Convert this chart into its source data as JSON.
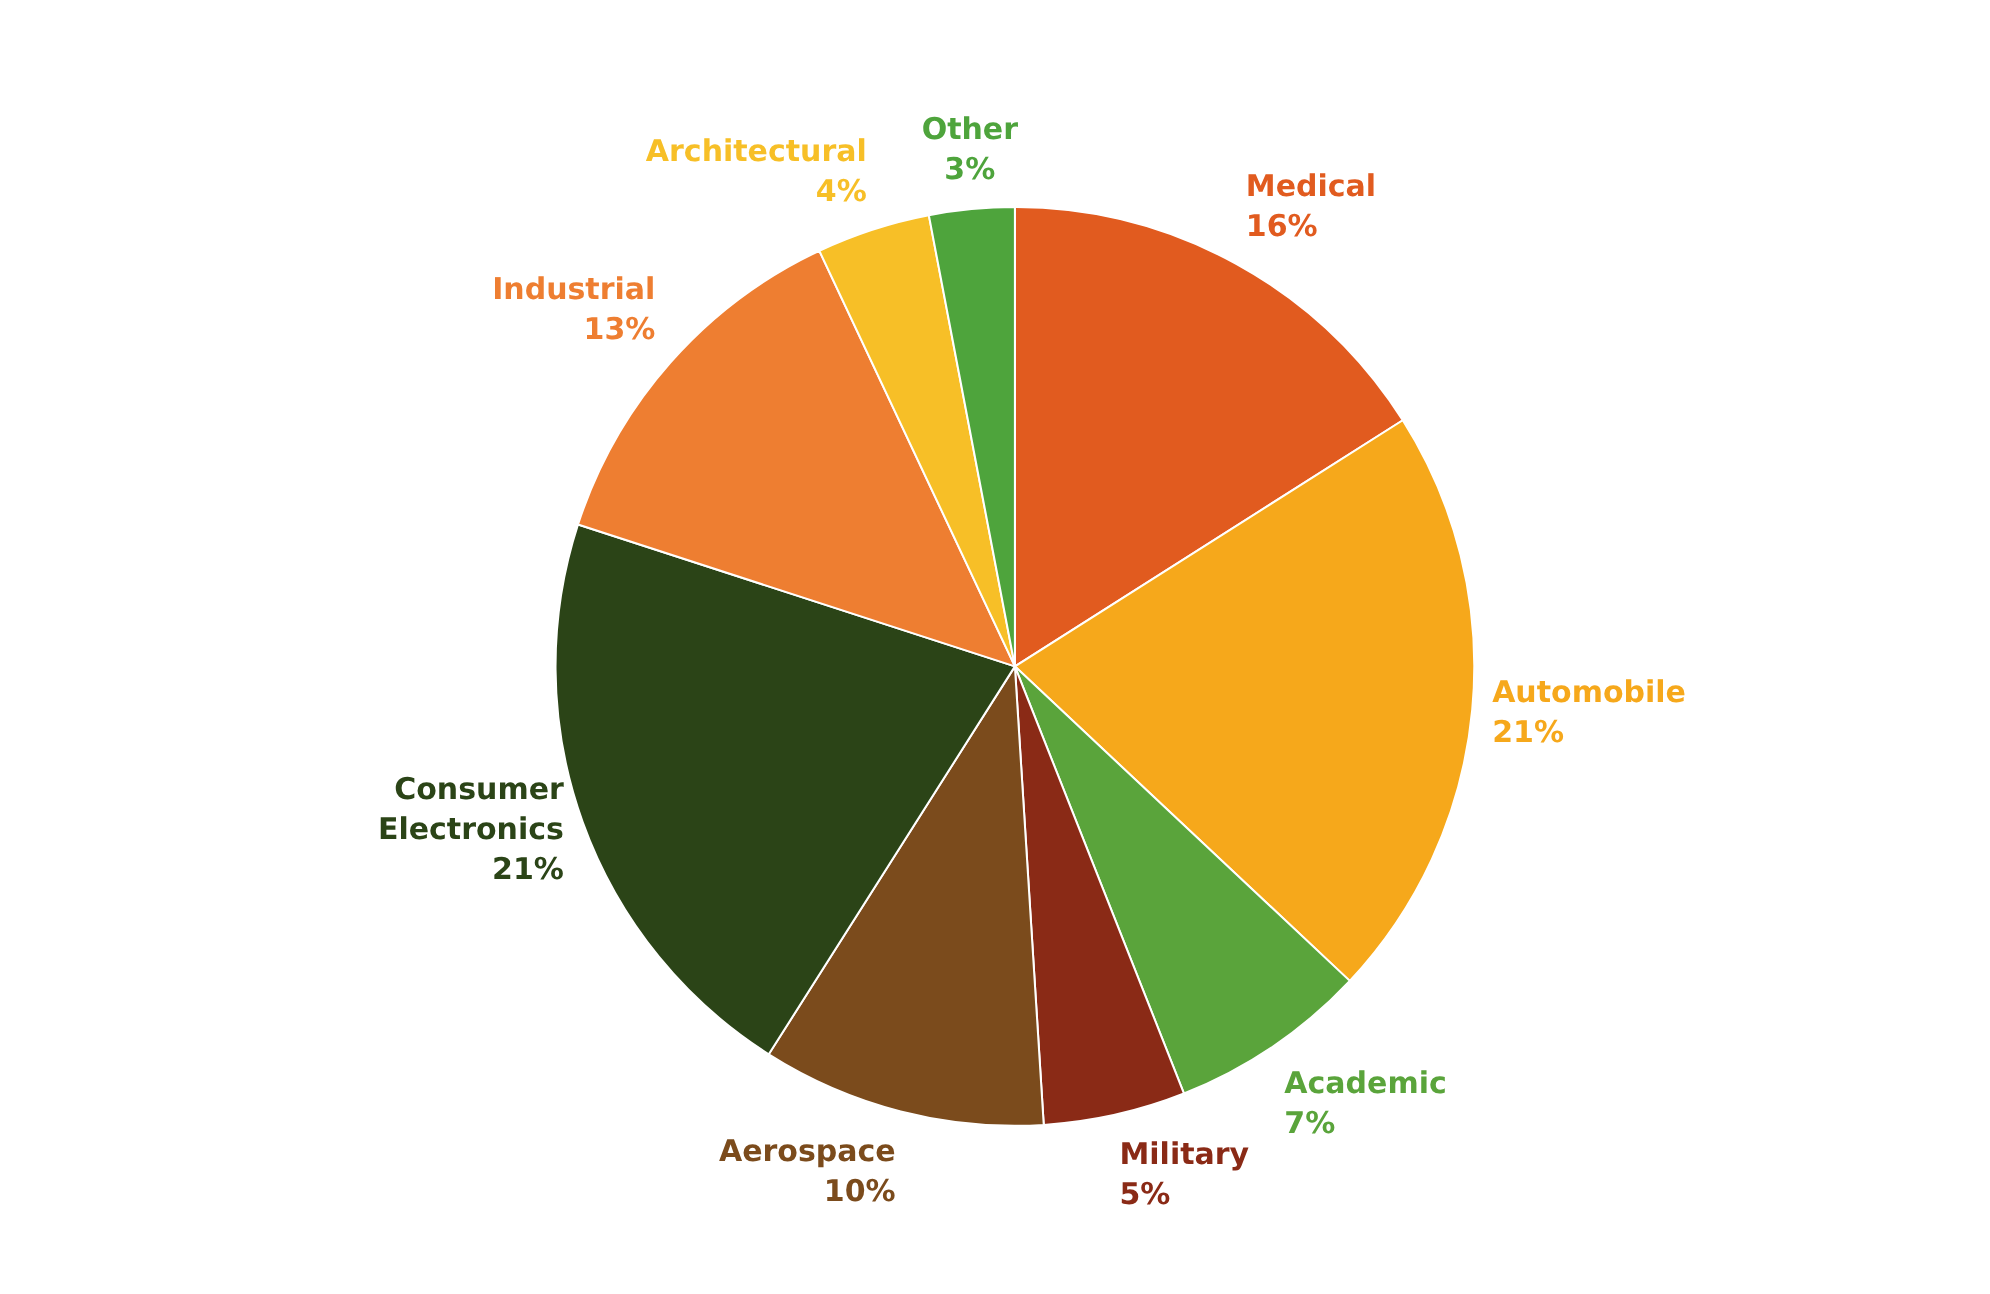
{
  "chart_data": {
    "type": "pie",
    "categories": [
      "Medical",
      "Automobile",
      "Academic",
      "Military",
      "Aerospace",
      "Consumer Electronics",
      "Industrial",
      "Architectural",
      "Other"
    ],
    "values": [
      16,
      21,
      7,
      5,
      10,
      21,
      13,
      4,
      3
    ],
    "value_labels": [
      "16%",
      "21%",
      "7%",
      "5%",
      "10%",
      "21%",
      "13%",
      "4%",
      "3%"
    ],
    "colors": [
      "#e15b1f",
      "#f6a81b",
      "#5aa43b",
      "#8a2a16",
      "#7b4b1c",
      "#2b4417",
      "#ee7e31",
      "#f7bf27",
      "#4ea43c"
    ],
    "legend": false
  }
}
